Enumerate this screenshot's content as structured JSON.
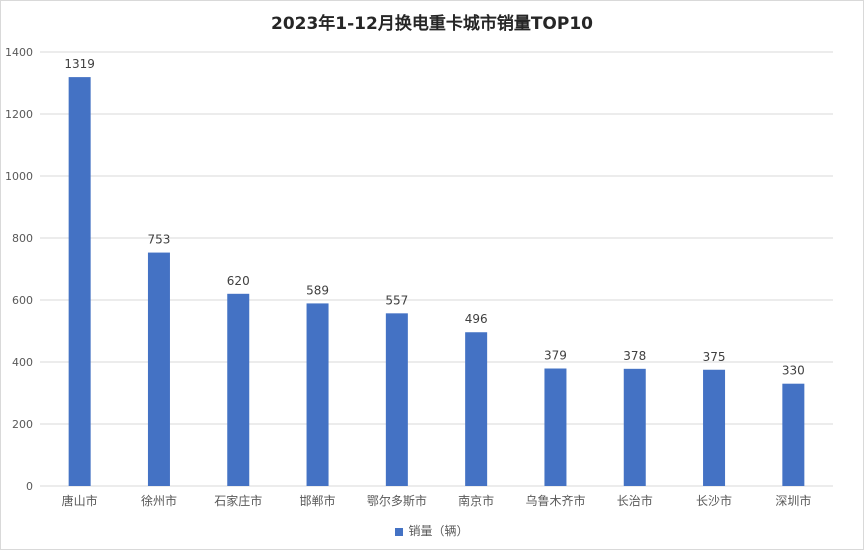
{
  "chart_data": {
    "type": "bar",
    "title": "2023年1-12月换电重卡城市销量TOP10",
    "categories": [
      "唐山市",
      "徐州市",
      "石家庄市",
      "邯郸市",
      "鄂尔多斯市",
      "南京市",
      "乌鲁木齐市",
      "长治市",
      "长沙市",
      "深圳市"
    ],
    "series": [
      {
        "name": "销量（辆）",
        "values": [
          1319,
          753,
          620,
          589,
          557,
          496,
          379,
          378,
          375,
          330
        ],
        "color": "#4472c4"
      }
    ],
    "yticks": [
      0,
      200,
      400,
      600,
      800,
      1000,
      1200,
      1400
    ],
    "ylim": [
      0,
      1400
    ],
    "grid": true,
    "legend_position": "bottom",
    "data_labels": true
  }
}
